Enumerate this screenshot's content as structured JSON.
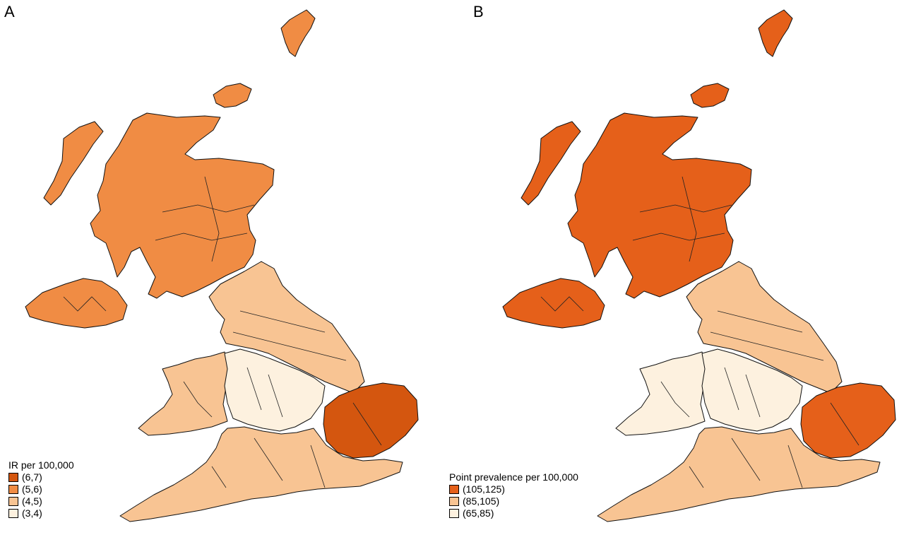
{
  "panels": [
    {
      "letter": "A",
      "legend": {
        "title": "IR per 100,000",
        "classes": [
          {
            "label": "(6,7)",
            "color": "#d4560f"
          },
          {
            "label": "(5,6)",
            "color": "#f08c44"
          },
          {
            "label": "(4,5)",
            "color": "#f8c493"
          },
          {
            "label": "(3,4)",
            "color": "#fdf1df"
          }
        ]
      }
    },
    {
      "letter": "B",
      "legend": {
        "title": "Point prevalence per 100,000",
        "classes": [
          {
            "label": "(105,125)",
            "color": "#e5601a"
          },
          {
            "label": "(85,105)",
            "color": "#f8c493"
          },
          {
            "label": "(65,85)",
            "color": "#fdf1df"
          }
        ]
      }
    }
  ],
  "region_classes": {
    "A": {
      "scotland": 1,
      "northern_ireland": 1,
      "north": 2,
      "midlands": 3,
      "east": 0,
      "south": 2,
      "wales": 2
    },
    "B": {
      "scotland": 0,
      "northern_ireland": 0,
      "north": 1,
      "midlands": 2,
      "east": 0,
      "south": 1,
      "wales": 2
    }
  }
}
